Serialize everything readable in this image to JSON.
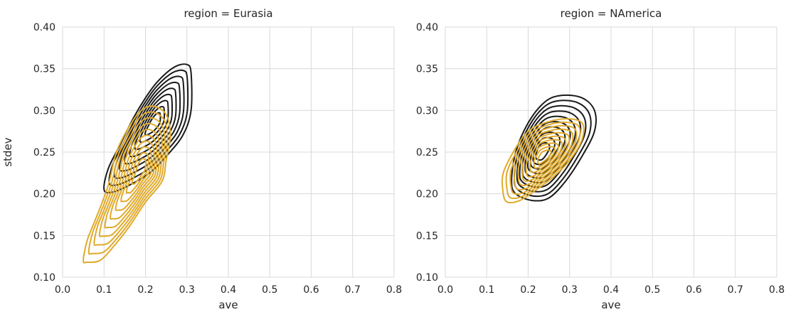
{
  "chart_data": [
    {
      "type": "kde-contour",
      "title": "region = Eurasia",
      "xlabel": "ave",
      "ylabel": "stdev",
      "xlim": [
        0.0,
        0.8
      ],
      "ylim": [
        0.1,
        0.4
      ],
      "xticks": [
        "0.0",
        "0.1",
        "0.2",
        "0.3",
        "0.4",
        "0.5",
        "0.6",
        "0.7",
        "0.8"
      ],
      "yticks": [
        "0.10",
        "0.15",
        "0.20",
        "0.25",
        "0.30",
        "0.35",
        "0.40"
      ],
      "grid": true,
      "series": [
        {
          "color": "#1a1a1a",
          "center": [
            0.22,
            0.285
          ],
          "outer_contour": [
            [
              0.1,
              0.205
            ],
            [
              0.11,
              0.23
            ],
            [
              0.14,
              0.26
            ],
            [
              0.17,
              0.29
            ],
            [
              0.2,
              0.315
            ],
            [
              0.23,
              0.335
            ],
            [
              0.27,
              0.352
            ],
            [
              0.3,
              0.355
            ],
            [
              0.31,
              0.345
            ],
            [
              0.31,
              0.3
            ],
            [
              0.29,
              0.27
            ],
            [
              0.25,
              0.245
            ],
            [
              0.21,
              0.225
            ],
            [
              0.16,
              0.21
            ],
            [
              0.12,
              0.202
            ]
          ],
          "levels": 9
        },
        {
          "color": "#e0aa2b",
          "center": [
            0.19,
            0.23
          ],
          "outer_contour": [
            [
              0.05,
              0.12
            ],
            [
              0.06,
              0.145
            ],
            [
              0.08,
              0.17
            ],
            [
              0.11,
              0.21
            ],
            [
              0.13,
              0.25
            ],
            [
              0.16,
              0.28
            ],
            [
              0.19,
              0.3
            ],
            [
              0.22,
              0.305
            ],
            [
              0.25,
              0.295
            ],
            [
              0.26,
              0.27
            ],
            [
              0.25,
              0.24
            ],
            [
              0.24,
              0.215
            ],
            [
              0.2,
              0.19
            ],
            [
              0.16,
              0.16
            ],
            [
              0.12,
              0.135
            ],
            [
              0.09,
              0.12
            ],
            [
              0.06,
              0.118
            ]
          ],
          "levels": 10
        }
      ]
    },
    {
      "type": "kde-contour",
      "title": "region = NAmerica",
      "xlabel": "ave",
      "ylabel": "",
      "xlim": [
        0.0,
        0.8
      ],
      "ylim": [
        0.1,
        0.4
      ],
      "xticks": [
        "0.0",
        "0.1",
        "0.2",
        "0.3",
        "0.4",
        "0.5",
        "0.6",
        "0.7",
        "0.8"
      ],
      "yticks": [
        "0.10",
        "0.15",
        "0.20",
        "0.25",
        "0.30",
        "0.35",
        "0.40"
      ],
      "grid": true,
      "series": [
        {
          "color": "#1a1a1a",
          "center": [
            0.23,
            0.25
          ],
          "outer_contour": [
            [
              0.16,
              0.215
            ],
            [
              0.17,
              0.25
            ],
            [
              0.2,
              0.285
            ],
            [
              0.24,
              0.31
            ],
            [
              0.28,
              0.318
            ],
            [
              0.33,
              0.315
            ],
            [
              0.36,
              0.3
            ],
            [
              0.36,
              0.275
            ],
            [
              0.33,
              0.245
            ],
            [
              0.29,
              0.215
            ],
            [
              0.25,
              0.195
            ],
            [
              0.21,
              0.192
            ],
            [
              0.17,
              0.2
            ]
          ],
          "levels": 10
        },
        {
          "color": "#e0aa2b",
          "center": [
            0.24,
            0.245
          ],
          "outer_contour": [
            [
              0.14,
              0.2
            ],
            [
              0.14,
              0.225
            ],
            [
              0.17,
              0.255
            ],
            [
              0.2,
              0.275
            ],
            [
              0.24,
              0.285
            ],
            [
              0.29,
              0.29
            ],
            [
              0.33,
              0.285
            ],
            [
              0.33,
              0.265
            ],
            [
              0.3,
              0.24
            ],
            [
              0.26,
              0.22
            ],
            [
              0.22,
              0.205
            ],
            [
              0.18,
              0.192
            ],
            [
              0.15,
              0.19
            ]
          ],
          "levels": 10
        }
      ]
    }
  ]
}
